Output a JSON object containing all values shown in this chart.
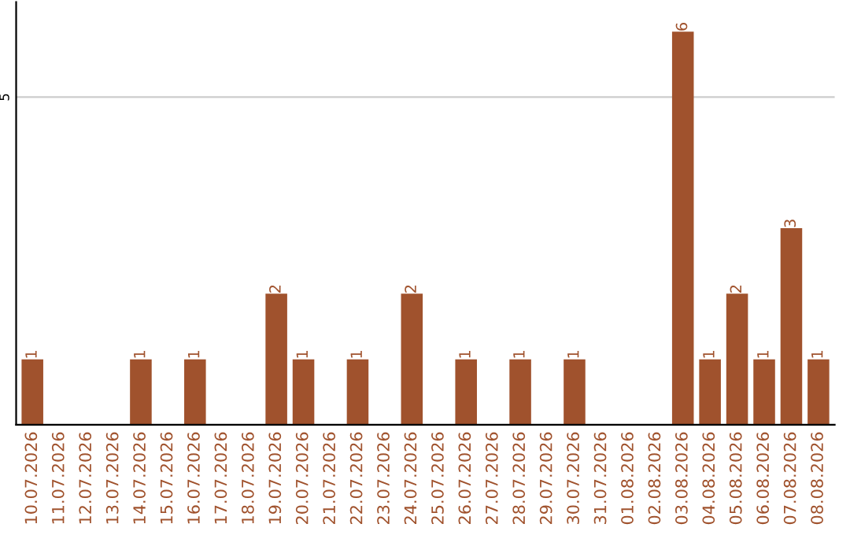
{
  "chart_data": {
    "type": "bar",
    "categories": [
      "10.07.2026",
      "11.07.2026",
      "12.07.2026",
      "13.07.2026",
      "14.07.2026",
      "15.07.2026",
      "16.07.2026",
      "17.07.2026",
      "18.07.2026",
      "19.07.2026",
      "20.07.2026",
      "21.07.2026",
      "22.07.2026",
      "23.07.2026",
      "24.07.2026",
      "25.07.2026",
      "26.07.2026",
      "27.07.2026",
      "28.07.2026",
      "29.07.2026",
      "30.07.2026",
      "31.07.2026",
      "01.08.2026",
      "02.08.2026",
      "03.08.2026",
      "04.08.2026",
      "05.08.2026",
      "06.08.2026",
      "07.08.2026",
      "08.08.2026"
    ],
    "values": [
      1,
      0,
      0,
      0,
      1,
      0,
      1,
      0,
      0,
      2,
      1,
      0,
      1,
      0,
      2,
      0,
      1,
      0,
      1,
      0,
      1,
      0,
      0,
      0,
      6,
      1,
      2,
      1,
      3,
      1
    ],
    "value_labels": [
      "1",
      null,
      null,
      null,
      "1",
      null,
      "1",
      null,
      null,
      "2",
      "1",
      null,
      "1",
      null,
      "2",
      null,
      "1",
      null,
      "1",
      null,
      "1",
      null,
      null,
      null,
      "6",
      "1",
      "2",
      "1",
      "3",
      "1"
    ],
    "color": "#a0522d",
    "ylim": [
      0,
      6.45
    ],
    "yticks": [
      5
    ],
    "grid": "y"
  }
}
